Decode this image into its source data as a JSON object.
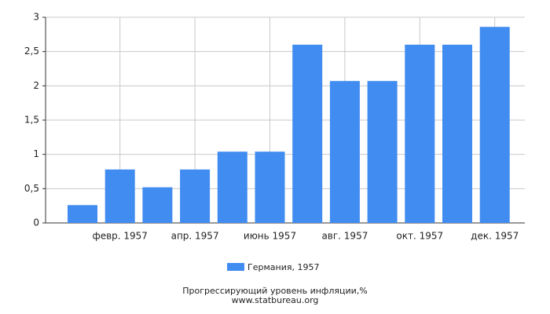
{
  "chart_data": {
    "type": "bar",
    "title": "Прогрессирующий уровень инфляции,%",
    "subtitle": "www.statbureau.org",
    "categories": [
      null,
      "февр. 1957",
      null,
      "апр. 1957",
      null,
      "июнь 1957",
      null,
      "авг. 1957",
      null,
      "окт. 1957",
      null,
      "дек. 1957"
    ],
    "series": [
      {
        "name": "Германия, 1957",
        "color": "#418cf0",
        "values": [
          0.26,
          0.78,
          0.52,
          0.78,
          1.04,
          1.04,
          2.6,
          2.07,
          2.07,
          2.6,
          2.6,
          2.86
        ]
      }
    ],
    "ylim": [
      0,
      3
    ],
    "yticks": [
      0,
      {
        "value": 0.5,
        "label": "0,5"
      },
      1,
      {
        "value": 1.5,
        "label": "1,5"
      },
      2,
      {
        "value": 2.5,
        "label": "2,5"
      },
      3
    ],
    "grid": true
  }
}
